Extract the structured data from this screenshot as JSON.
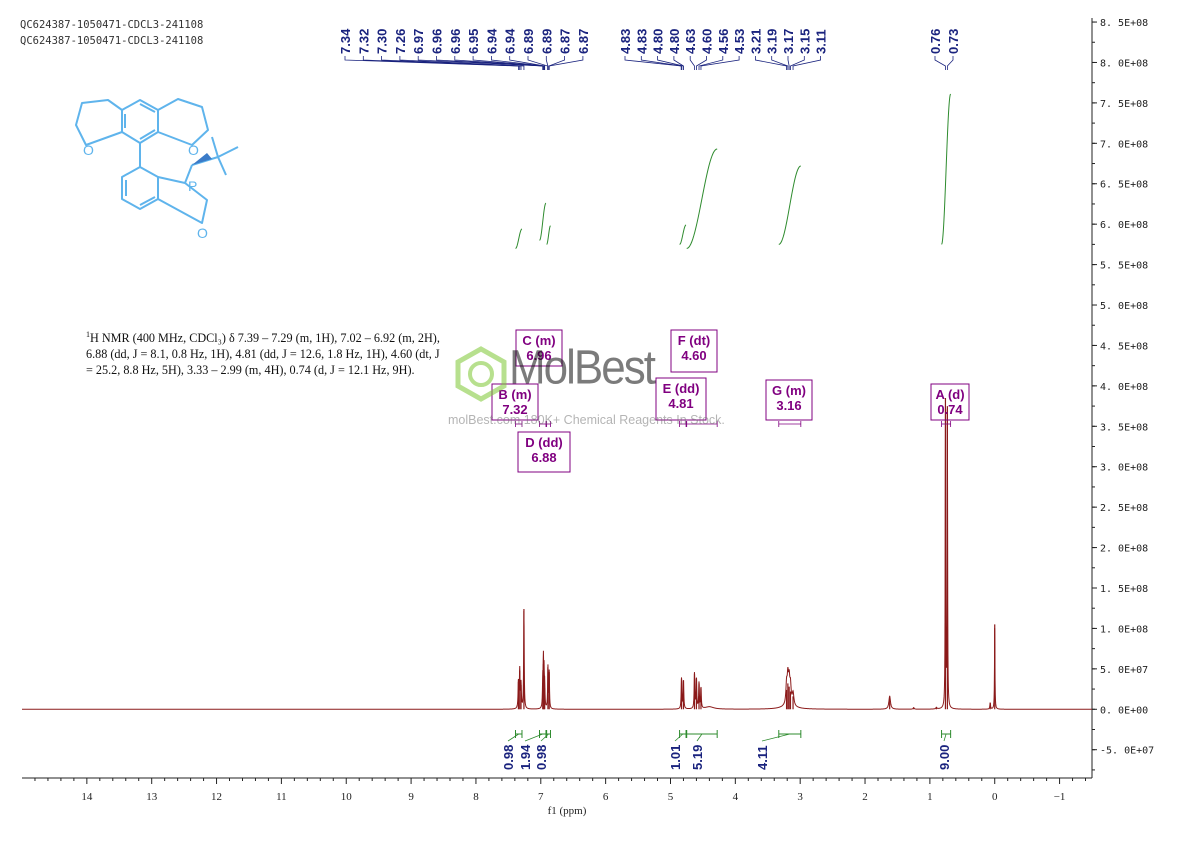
{
  "header": {
    "line1": "QC624387-1050471-CDCL3-241108",
    "line2": "QC624387-1050471-CDCL3-241108"
  },
  "description": {
    "nucleus_sup": "1",
    "text": "H NMR (400 MHz, CDCl₃) δ 7.39 – 7.29 (m, 1H), 7.02 – 6.92 (m, 2H), 6.88 (dd, J = 8.1, 0.8 Hz, 1H), 4.81 (dd, J = 12.6, 1.8 Hz, 1H), 4.60 (dt, J = 25.2, 8.8 Hz, 5H), 3.33 – 2.99 (m, 4H), 0.74 (d, J = 12.1 Hz, 9H)."
  },
  "watermark": {
    "brand": "MolBest",
    "tagline": "molBest.com,180K+ Chemical Reagents In Stock."
  },
  "structure": {
    "atom_labels": [
      "O",
      "O",
      "P",
      "O"
    ]
  },
  "chart_data": {
    "type": "line",
    "title": "",
    "xlabel": "f1 (ppm)",
    "ylabel": "",
    "x_reversed": true,
    "xlim": [
      15.0,
      -1.5
    ],
    "ylim": [
      -85000000.0,
      855000000.0
    ],
    "x_ticks": [
      14,
      13,
      12,
      11,
      10,
      9,
      8,
      7,
      6,
      5,
      4,
      3,
      2,
      1,
      0,
      -1
    ],
    "x_tick_labels": [
      "14",
      "13",
      "12",
      "11",
      "10",
      "9",
      "8",
      "7",
      "6",
      "5",
      "4",
      "3",
      "2",
      "1",
      "0",
      "−1"
    ],
    "y_ticks": [
      -50000000.0,
      0,
      50000000.0,
      100000000.0,
      150000000.0,
      200000000.0,
      250000000.0,
      300000000.0,
      350000000.0,
      400000000.0,
      450000000.0,
      500000000.0,
      550000000.0,
      600000000.0,
      650000000.0,
      700000000.0,
      750000000.0,
      800000000.0,
      850000000.0
    ],
    "y_tick_labels": [
      "-5. 0E+07",
      "0. 0E+00",
      "5. 0E+07",
      "1. 0E+08",
      "1. 5E+08",
      "2. 0E+08",
      "2. 5E+08",
      "3. 0E+08",
      "3. 5E+08",
      "4. 0E+08",
      "4. 5E+08",
      "5. 0E+08",
      "5. 5E+08",
      "6. 0E+08",
      "6. 5E+08",
      "7. 0E+08",
      "7. 5E+08",
      "8. 0E+08",
      "8. 5E+08"
    ],
    "peaks": [
      {
        "ppm": 7.345,
        "height": 34000000.0,
        "w": 0.006
      },
      {
        "ppm": 7.325,
        "height": 48000000.0,
        "w": 0.006
      },
      {
        "ppm": 7.305,
        "height": 30000000.0,
        "w": 0.006
      },
      {
        "ppm": 7.26,
        "height": 124000000.0,
        "w": 0.005
      },
      {
        "ppm": 6.97,
        "height": 32000000.0,
        "w": 0.005
      },
      {
        "ppm": 6.96,
        "height": 56000000.0,
        "w": 0.005
      },
      {
        "ppm": 6.95,
        "height": 42000000.0,
        "w": 0.005
      },
      {
        "ppm": 6.94,
        "height": 26000000.0,
        "w": 0.005
      },
      {
        "ppm": 6.89,
        "height": 52000000.0,
        "w": 0.005
      },
      {
        "ppm": 6.87,
        "height": 46000000.0,
        "w": 0.005
      },
      {
        "ppm": 4.83,
        "height": 38000000.0,
        "w": 0.006
      },
      {
        "ppm": 4.8,
        "height": 36000000.0,
        "w": 0.006
      },
      {
        "ppm": 4.63,
        "height": 44000000.0,
        "w": 0.006
      },
      {
        "ppm": 4.6,
        "height": 38000000.0,
        "w": 0.006
      },
      {
        "ppm": 4.56,
        "height": 32000000.0,
        "w": 0.006
      },
      {
        "ppm": 4.53,
        "height": 26000000.0,
        "w": 0.006
      },
      {
        "ppm": 4.4,
        "height": 3000000.0,
        "w": 0.08
      },
      {
        "ppm": 3.21,
        "height": 24000000.0,
        "w": 0.012
      },
      {
        "ppm": 3.19,
        "height": 32000000.0,
        "w": 0.012
      },
      {
        "ppm": 3.17,
        "height": 28000000.0,
        "w": 0.012
      },
      {
        "ppm": 3.15,
        "height": 22000000.0,
        "w": 0.012
      },
      {
        "ppm": 3.11,
        "height": 16000000.0,
        "w": 0.015
      },
      {
        "ppm": 3.18,
        "height": 4000000.0,
        "w": 0.12
      },
      {
        "ppm": 1.62,
        "height": 16000000.0,
        "w": 0.015
      },
      {
        "ppm": 1.25,
        "height": 2000000.0,
        "w": 0.01
      },
      {
        "ppm": 0.9,
        "height": 2000000.0,
        "w": 0.01
      },
      {
        "ppm": 0.76,
        "height": 385000000.0,
        "w": 0.004
      },
      {
        "ppm": 0.73,
        "height": 375000000.0,
        "w": 0.004
      },
      {
        "ppm": 0.07,
        "height": 8000000.0,
        "w": 0.006
      },
      {
        "ppm": 0.0,
        "height": 105000000.0,
        "w": 0.004
      }
    ],
    "peak_labels": {
      "group1": [
        "7.34",
        "7.32",
        "7.30",
        "7.26",
        "6.97",
        "6.96",
        "6.96",
        "6.95",
        "6.94",
        "6.94",
        "6.89",
        "6.89",
        "6.87",
        "6.87"
      ],
      "group2": [
        "4.83",
        "4.83",
        "4.80",
        "4.80",
        "4.63",
        "4.60",
        "4.56",
        "4.53",
        "3.21",
        "3.19",
        "3.17",
        "3.15",
        "3.11"
      ],
      "group3": [
        "0.76",
        "0.73"
      ]
    },
    "multiplets": [
      {
        "label": "A (d)",
        "value": "0.74",
        "from": 0.82,
        "to": 0.68
      },
      {
        "label": "B (m)",
        "value": "7.32",
        "from": 7.39,
        "to": 7.29
      },
      {
        "label": "C (m)",
        "value": "6.96",
        "from": 7.02,
        "to": 6.92
      },
      {
        "label": "D (dd)",
        "value": "6.88",
        "from": 6.91,
        "to": 6.85
      },
      {
        "label": "E (dd)",
        "value": "4.81",
        "from": 4.86,
        "to": 4.76
      },
      {
        "label": "F (dt)",
        "value": "4.60",
        "from": 4.75,
        "to": 4.28
      },
      {
        "label": "G (m)",
        "value": "3.16",
        "from": 3.33,
        "to": 2.99
      }
    ],
    "integrals": [
      {
        "value": "0.98",
        "from": 7.39,
        "to": 7.29,
        "rise": 24000000.0
      },
      {
        "value": "1.94",
        "from": 7.02,
        "to": 6.92,
        "rise": 46000000.0
      },
      {
        "value": "0.98",
        "from": 6.91,
        "to": 6.85,
        "rise": 23000000.0
      },
      {
        "value": "1.01",
        "from": 4.86,
        "to": 4.76,
        "rise": 24000000.0
      },
      {
        "value": "5.19",
        "from": 4.75,
        "to": 4.28,
        "rise": 123000000.0
      },
      {
        "value": "4.11",
        "from": 3.33,
        "to": 2.99,
        "rise": 97000000.0
      },
      {
        "value": "9.00",
        "from": 0.82,
        "to": 0.68,
        "rise": 186000000.0
      }
    ],
    "colors": {
      "spectrum": "#8b1a1a",
      "integral": "#2e8b2e",
      "peak_label": "#1a237e",
      "multiplet": "#800080",
      "molecule": "#5fb4ec",
      "watermark_logo": "#7ec832"
    }
  }
}
